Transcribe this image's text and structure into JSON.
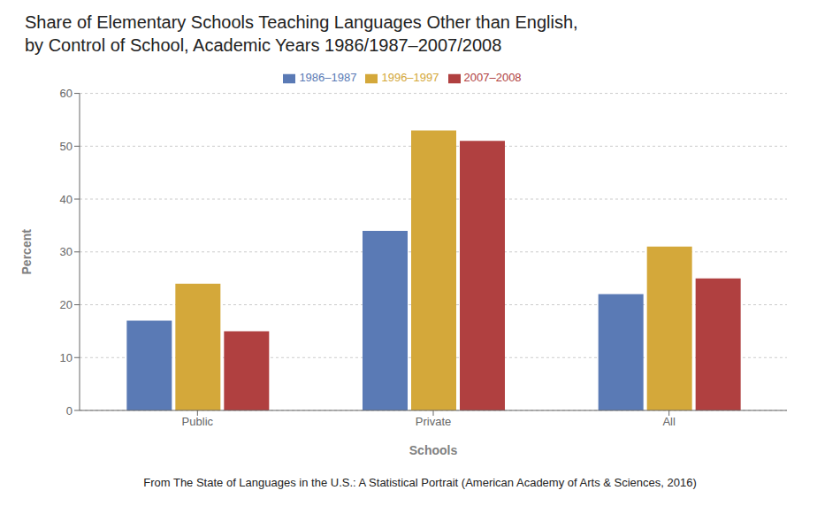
{
  "chart_data": {
    "type": "bar",
    "title": "Share of Elementary Schools Teaching Languages Other than English,",
    "subtitle": "by Control of School, Academic Years 1986/1987–2007/2008",
    "categories": [
      "Public",
      "Private",
      "All"
    ],
    "series": [
      {
        "name": "1986–1987",
        "color": "#5a7ab5",
        "values": [
          17,
          34,
          22
        ]
      },
      {
        "name": "1996–1997",
        "color": "#d4a83a",
        "values": [
          24,
          53,
          31
        ]
      },
      {
        "name": "2007–2008",
        "color": "#b04040",
        "values": [
          15,
          51,
          25
        ]
      }
    ],
    "xlabel": "Schools",
    "ylabel": "Percent",
    "ylim": [
      0,
      60
    ],
    "yticks": [
      0,
      10,
      20,
      30,
      40,
      50,
      60
    ],
    "grid": true,
    "legend": "top",
    "annotations": [
      "From The State of Languages in the U.S.: A Statistical Portrait (American Academy of Arts & Sciences, 2016)"
    ]
  }
}
